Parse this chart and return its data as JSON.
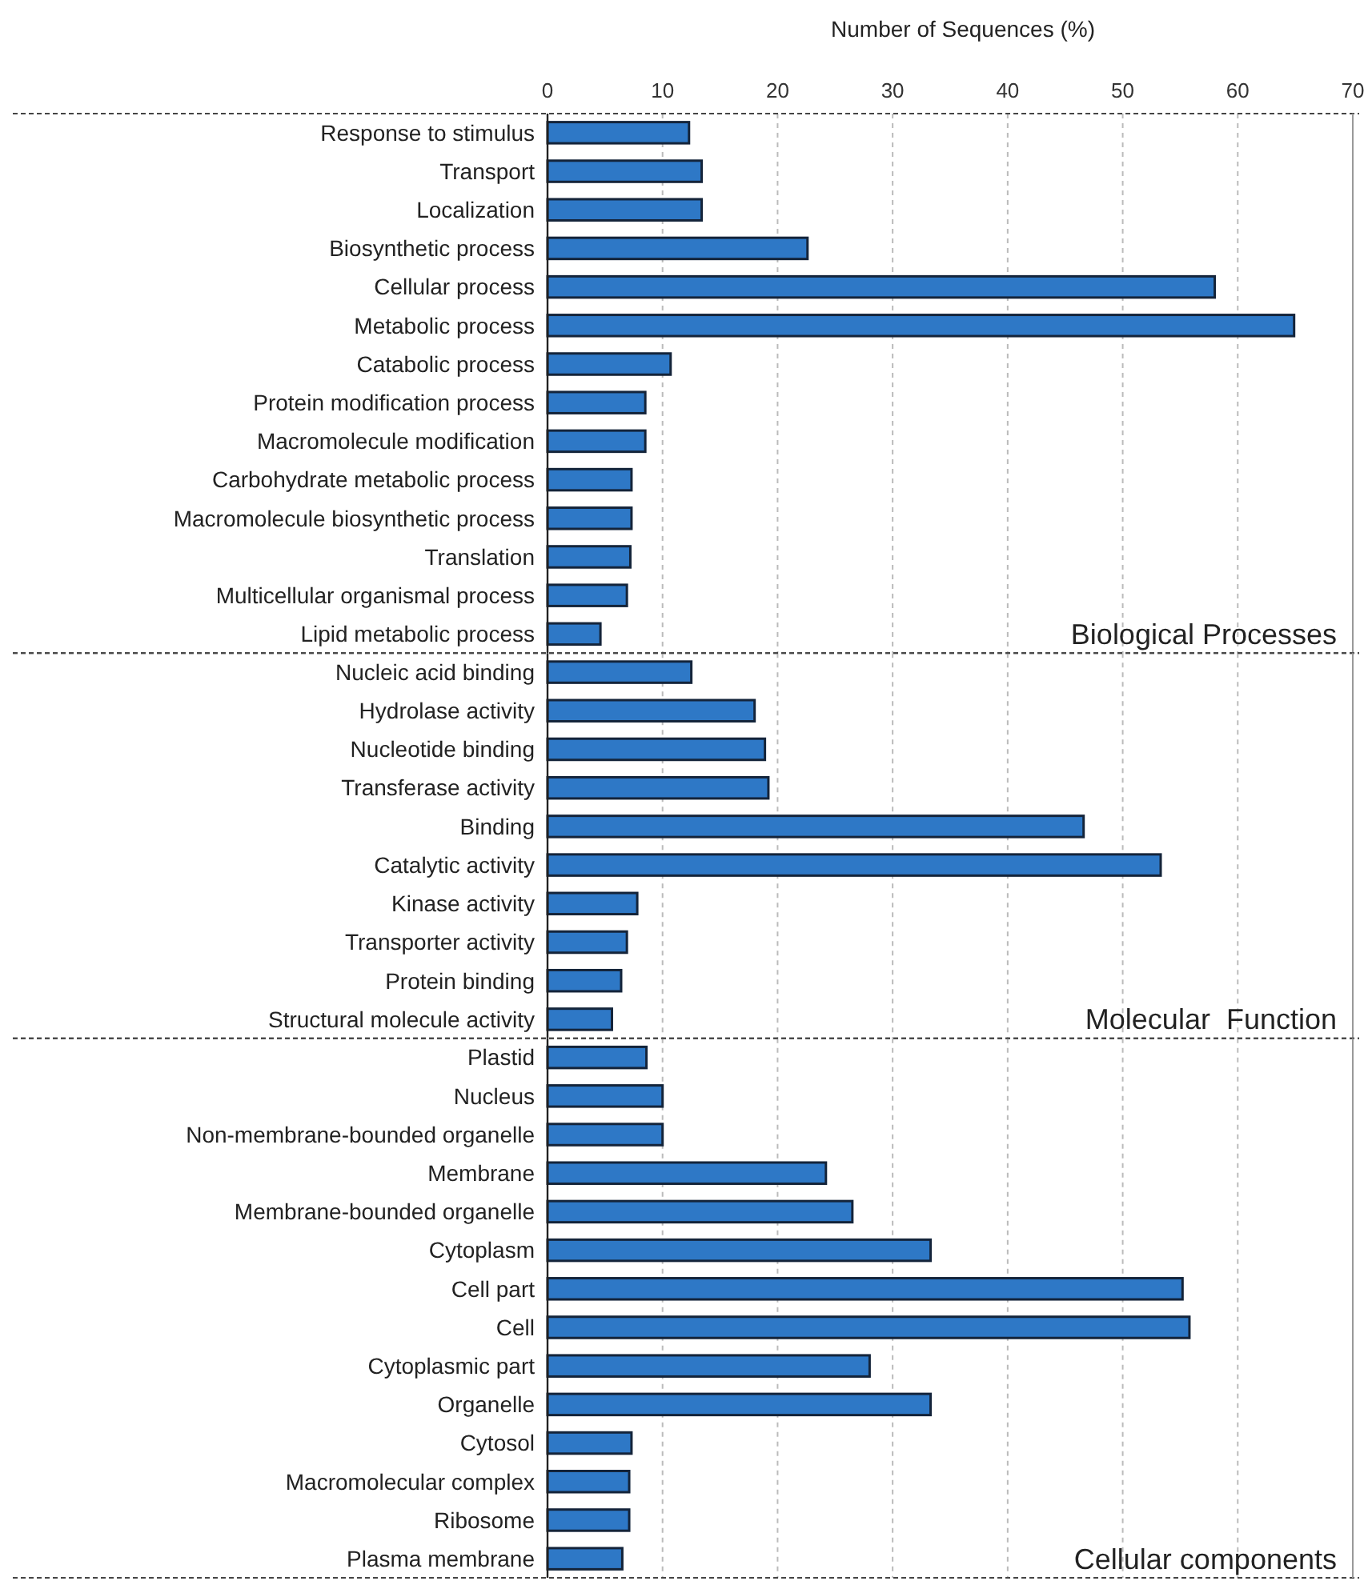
{
  "chart_data": [
    {
      "type": "bar",
      "orientation": "horizontal",
      "xlabel": "Number of Sequences (%)",
      "categories": [
        "Response to stimulus",
        "Transport",
        "Localization",
        "Biosynthetic process",
        "Cellular process",
        "Metabolic process",
        "Catabolic process",
        "Protein modification process",
        "Macromolecule modification",
        "Carbohydrate metabolic process",
        "Macromolecule biosynthetic process",
        "Translation",
        "Multicellular organismal process",
        "Lipid metabolic process"
      ],
      "values": [
        12.3,
        13.4,
        13.4,
        22.6,
        58.0,
        64.9,
        10.7,
        8.5,
        8.5,
        7.3,
        7.3,
        7.2,
        6.9,
        4.6
      ],
      "color": "#2e78c6",
      "xlim": [
        0,
        70
      ],
      "xticks": [
        0,
        10,
        20,
        30,
        40,
        50,
        60,
        70
      ],
      "grid": "x",
      "annotations": [
        "Biological Processes"
      ]
    },
    {
      "type": "bar",
      "orientation": "horizontal",
      "categories": [
        "Nucleic acid binding",
        "Hydrolase activity",
        "Nucleotide binding",
        "Transferase activity",
        "Binding",
        "Catalytic activity",
        "Kinase activity",
        "Transporter activity",
        "Protein binding",
        "Structural molecule activity"
      ],
      "values": [
        12.5,
        18.0,
        18.9,
        19.2,
        46.6,
        53.3,
        7.8,
        6.9,
        6.4,
        5.6
      ],
      "color": "#2e78c6",
      "xlim": [
        0,
        70
      ],
      "xticks": [
        0,
        10,
        20,
        30,
        40,
        50,
        60,
        70
      ],
      "grid": "x",
      "tick_labels": "y",
      "annotations": [
        "Molecular  Function"
      ]
    },
    {
      "type": "bar",
      "orientation": "horizontal",
      "categories": [
        "Plastid",
        "Nucleus",
        "Non-membrane-bounded organelle",
        "Membrane",
        "Membrane-bounded organelle",
        "Cytoplasm",
        "Cell part",
        "Cell",
        "Cytoplasmic part",
        "Organelle",
        "Cytosol",
        "Macromolecular complex",
        "Ribosome",
        "Plasma membrane"
      ],
      "values": [
        8.6,
        10.0,
        10.0,
        24.2,
        26.5,
        33.3,
        55.2,
        55.8,
        28.0,
        33.3,
        7.3,
        7.1,
        7.1,
        6.5
      ],
      "color": "#2e78c6",
      "xlim": [
        0,
        70
      ],
      "xticks": [
        0,
        10,
        20,
        30,
        40,
        50,
        60,
        70
      ],
      "grid": "x",
      "tick_labels": "y",
      "annotations": [
        "Cellular components"
      ]
    }
  ]
}
